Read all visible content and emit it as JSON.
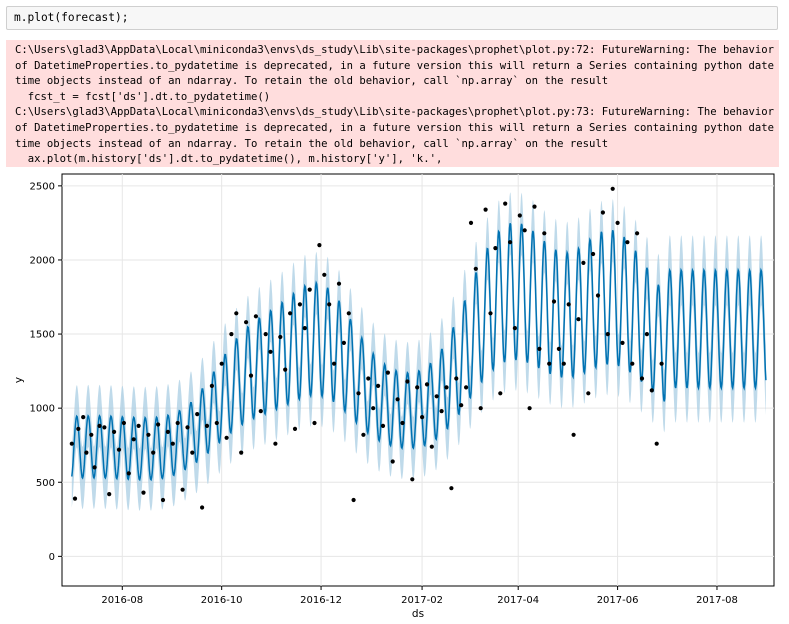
{
  "input_cell": {
    "code": "m.plot(forecast);"
  },
  "stderr_lines": [
    "C:\\Users\\glad3\\AppData\\Local\\miniconda3\\envs\\ds_study\\Lib\\site-packages\\prophet\\plot.py:72: FutureWarning: The behavior",
    "of DatetimeProperties.to_pydatetime is deprecated, in a future version this will return a Series containing python date",
    "time objects instead of an ndarray. To retain the old behavior, call `np.array` on the result",
    "  fcst_t = fcst['ds'].dt.to_pydatetime()",
    "C:\\Users\\glad3\\AppData\\Local\\miniconda3\\envs\\ds_study\\Lib\\site-packages\\prophet\\plot.py:73: FutureWarning: The behavior",
    "of DatetimeProperties.to_pydatetime is deprecated, in a future version this will return a Series containing python date",
    "time objects instead of an ndarray. To retain the old behavior, call `np.array` on the result",
    "  ax.plot(m.history['ds'].dt.to_pydatetime(), m.history['y'], 'k.',"
  ],
  "chart_data": {
    "type": "line",
    "xlabel": "ds",
    "ylabel": "y",
    "x_range": [
      "2016-06-25",
      "2017-09-05"
    ],
    "y_range": [
      -200,
      2580
    ],
    "x_ticks": [
      {
        "date": "2016-08-01",
        "label": "2016-08"
      },
      {
        "date": "2016-10-01",
        "label": "2016-10"
      },
      {
        "date": "2016-12-01",
        "label": "2016-12"
      },
      {
        "date": "2017-02-01",
        "label": "2017-02"
      },
      {
        "date": "2017-04-01",
        "label": "2017-04"
      },
      {
        "date": "2017-06-01",
        "label": "2017-06"
      },
      {
        "date": "2017-08-01",
        "label": "2017-08"
      }
    ],
    "y_ticks": [
      0,
      500,
      1000,
      1500,
      2000,
      2500
    ],
    "grid": true,
    "history_end": "2017-06-30",
    "colors": {
      "forecast_line": "#0072B2",
      "uncertainty_band": "#a9cde3",
      "actual_points": "#000000",
      "grid": "#e6e6e6"
    },
    "series": [
      {
        "name": "actual",
        "style": "k.",
        "points": [
          [
            "2016-07-01",
            760
          ],
          [
            "2016-07-03",
            390
          ],
          [
            "2016-07-05",
            860
          ],
          [
            "2016-07-08",
            940
          ],
          [
            "2016-07-10",
            700
          ],
          [
            "2016-07-13",
            820
          ],
          [
            "2016-07-15",
            600
          ],
          [
            "2016-07-18",
            880
          ],
          [
            "2016-07-21",
            870
          ],
          [
            "2016-07-24",
            420
          ],
          [
            "2016-07-27",
            840
          ],
          [
            "2016-07-30",
            720
          ],
          [
            "2016-08-02",
            900
          ],
          [
            "2016-08-05",
            560
          ],
          [
            "2016-08-08",
            790
          ],
          [
            "2016-08-11",
            880
          ],
          [
            "2016-08-14",
            430
          ],
          [
            "2016-08-17",
            820
          ],
          [
            "2016-08-20",
            700
          ],
          [
            "2016-08-23",
            890
          ],
          [
            "2016-08-26",
            380
          ],
          [
            "2016-08-29",
            840
          ],
          [
            "2016-09-01",
            760
          ],
          [
            "2016-09-04",
            900
          ],
          [
            "2016-09-07",
            450
          ],
          [
            "2016-09-10",
            870
          ],
          [
            "2016-09-13",
            700
          ],
          [
            "2016-09-16",
            960
          ],
          [
            "2016-09-19",
            330
          ],
          [
            "2016-09-22",
            880
          ],
          [
            "2016-09-25",
            1150
          ],
          [
            "2016-09-28",
            900
          ],
          [
            "2016-10-01",
            1300
          ],
          [
            "2016-10-04",
            800
          ],
          [
            "2016-10-07",
            1500
          ],
          [
            "2016-10-10",
            1640
          ],
          [
            "2016-10-13",
            700
          ],
          [
            "2016-10-16",
            1580
          ],
          [
            "2016-10-19",
            1220
          ],
          [
            "2016-10-22",
            1620
          ],
          [
            "2016-10-25",
            980
          ],
          [
            "2016-10-28",
            1500
          ],
          [
            "2016-10-31",
            1380
          ],
          [
            "2016-11-03",
            760
          ],
          [
            "2016-11-06",
            1480
          ],
          [
            "2016-11-09",
            1260
          ],
          [
            "2016-11-12",
            1640
          ],
          [
            "2016-11-15",
            860
          ],
          [
            "2016-11-18",
            1700
          ],
          [
            "2016-11-21",
            1540
          ],
          [
            "2016-11-24",
            1800
          ],
          [
            "2016-11-27",
            900
          ],
          [
            "2016-11-30",
            2100
          ],
          [
            "2016-12-03",
            1900
          ],
          [
            "2016-12-06",
            1700
          ],
          [
            "2016-12-09",
            1300
          ],
          [
            "2016-12-12",
            1840
          ],
          [
            "2016-12-15",
            1440
          ],
          [
            "2016-12-18",
            1640
          ],
          [
            "2016-12-21",
            380
          ],
          [
            "2016-12-24",
            1100
          ],
          [
            "2016-12-27",
            820
          ],
          [
            "2016-12-30",
            1200
          ],
          [
            "2017-01-02",
            1000
          ],
          [
            "2017-01-05",
            1150
          ],
          [
            "2017-01-08",
            880
          ],
          [
            "2017-01-11",
            1240
          ],
          [
            "2017-01-14",
            640
          ],
          [
            "2017-01-17",
            1060
          ],
          [
            "2017-01-20",
            900
          ],
          [
            "2017-01-23",
            1180
          ],
          [
            "2017-01-26",
            520
          ],
          [
            "2017-01-29",
            1140
          ],
          [
            "2017-02-01",
            940
          ],
          [
            "2017-02-04",
            1160
          ],
          [
            "2017-02-07",
            740
          ],
          [
            "2017-02-10",
            1080
          ],
          [
            "2017-02-13",
            980
          ],
          [
            "2017-02-16",
            1140
          ],
          [
            "2017-02-19",
            460
          ],
          [
            "2017-02-22",
            1200
          ],
          [
            "2017-02-25",
            1020
          ],
          [
            "2017-02-28",
            1140
          ],
          [
            "2017-03-03",
            2250
          ],
          [
            "2017-03-06",
            1940
          ],
          [
            "2017-03-09",
            1000
          ],
          [
            "2017-03-12",
            2340
          ],
          [
            "2017-03-15",
            1640
          ],
          [
            "2017-03-18",
            2080
          ],
          [
            "2017-03-21",
            1100
          ],
          [
            "2017-03-24",
            2380
          ],
          [
            "2017-03-27",
            2120
          ],
          [
            "2017-03-30",
            1540
          ],
          [
            "2017-04-02",
            2300
          ],
          [
            "2017-04-05",
            2200
          ],
          [
            "2017-04-08",
            1000
          ],
          [
            "2017-04-11",
            2360
          ],
          [
            "2017-04-14",
            1400
          ],
          [
            "2017-04-17",
            2180
          ],
          [
            "2017-04-20",
            1300
          ],
          [
            "2017-04-23",
            1720
          ],
          [
            "2017-04-26",
            1400
          ],
          [
            "2017-04-29",
            1300
          ],
          [
            "2017-05-02",
            1700
          ],
          [
            "2017-05-05",
            820
          ],
          [
            "2017-05-08",
            1600
          ],
          [
            "2017-05-11",
            1980
          ],
          [
            "2017-05-14",
            1100
          ],
          [
            "2017-05-17",
            2040
          ],
          [
            "2017-05-20",
            1760
          ],
          [
            "2017-05-23",
            2320
          ],
          [
            "2017-05-26",
            1500
          ],
          [
            "2017-05-29",
            2480
          ],
          [
            "2017-06-01",
            2250
          ],
          [
            "2017-06-04",
            1440
          ],
          [
            "2017-06-07",
            2120
          ],
          [
            "2017-06-10",
            1300
          ],
          [
            "2017-06-13",
            2180
          ],
          [
            "2017-06-16",
            1200
          ],
          [
            "2017-06-19",
            1500
          ],
          [
            "2017-06-22",
            1120
          ],
          [
            "2017-06-25",
            760
          ],
          [
            "2017-06-28",
            1300
          ]
        ]
      },
      {
        "name": "yhat",
        "style": "line"
      },
      {
        "name": "yhat_interval",
        "style": "band"
      }
    ]
  }
}
